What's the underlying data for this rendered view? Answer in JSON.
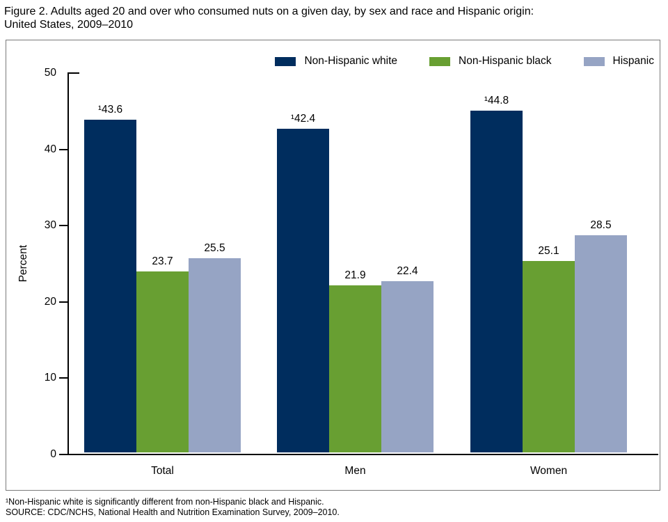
{
  "figure": {
    "title_line1": "Figure 2. Adults aged 20 and over who consumed nuts on a given day, by sex and race and Hispanic origin:",
    "title_line2": "United States, 2009–2010"
  },
  "chart_data": {
    "type": "bar",
    "title": "",
    "categories": [
      "Total",
      "Men",
      "Women"
    ],
    "series": [
      {
        "name": "Non-Hispanic white",
        "color": "#002d5e",
        "values": [
          43.6,
          42.4,
          44.8
        ],
        "bar_labels": [
          "¹43.6",
          "¹42.4",
          "¹44.8"
        ]
      },
      {
        "name": "Non-Hispanic black",
        "color": "#689f32",
        "values": [
          23.7,
          21.9,
          25.1
        ],
        "bar_labels": [
          "23.7",
          "21.9",
          "25.1"
        ]
      },
      {
        "name": "Hispanic",
        "color": "#96a4c4",
        "values": [
          25.5,
          22.4,
          28.5
        ],
        "bar_labels": [
          "25.5",
          "22.4",
          "28.5"
        ]
      }
    ],
    "xlabel": "",
    "ylabel": "Percent",
    "ylim": [
      0,
      50
    ],
    "y_ticks": [
      0,
      10,
      20,
      30,
      40,
      50
    ],
    "grid": false,
    "legend_position": "top-right"
  },
  "footnotes": {
    "line1": "¹Non-Hispanic white is significantly different from non-Hispanic black and Hispanic.",
    "line2": "SOURCE: CDC/NCHS, National Health and Nutrition Examination Survey, 2009–2010."
  },
  "colors": {
    "axis": "#000000",
    "box_border": "#7a7a7a",
    "text": "#000000"
  }
}
